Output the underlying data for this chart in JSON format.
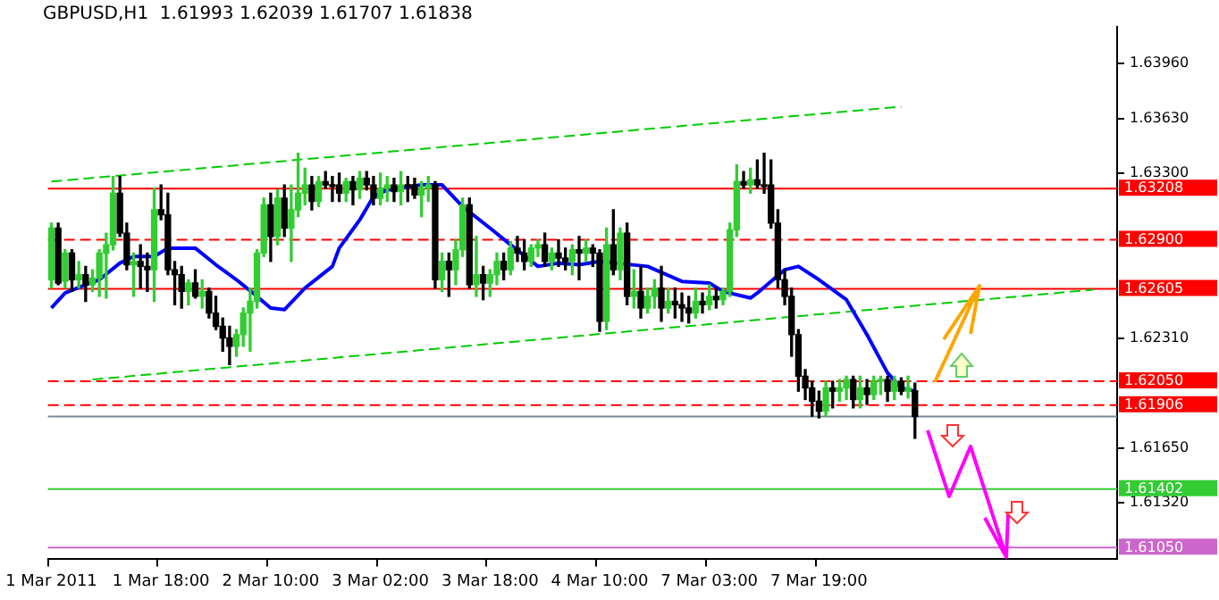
{
  "chart_data": {
    "type": "candlestick",
    "title": "GBPUSD,H1  1.61993 1.62039 1.61707 1.61838",
    "categories": [
      "1 Mar 2011",
      null,
      null,
      null,
      null,
      null,
      null,
      null,
      null,
      null,
      null,
      null,
      null,
      null,
      null,
      null,
      "1 Mar 18:00",
      null,
      null,
      null,
      null,
      null,
      null,
      null,
      null,
      null,
      null,
      null,
      null,
      null,
      null,
      null,
      "2 Mar 10:00",
      null,
      null,
      null,
      null,
      null,
      null,
      null,
      null,
      null,
      null,
      null,
      null,
      null,
      null,
      null,
      "3 Mar 02:00",
      null,
      null,
      null,
      null,
      null,
      null,
      null,
      null,
      null,
      null,
      null,
      null,
      null,
      null,
      null,
      "3 Mar 18:00",
      null,
      null,
      null,
      null,
      null,
      null,
      null,
      null,
      null,
      null,
      null,
      null,
      null,
      null,
      null,
      "4 Mar 10:00",
      null,
      null,
      null,
      null,
      null,
      null,
      null,
      null,
      null,
      null,
      null,
      null,
      null,
      null,
      null,
      "7 Mar 03:00",
      null,
      null,
      null,
      null,
      null,
      null,
      null,
      null,
      null,
      null,
      null,
      null,
      null,
      null,
      null,
      "7 Mar 19:00",
      null,
      null,
      null,
      null,
      null,
      null,
      null,
      null,
      null,
      null,
      null,
      null,
      null,
      null,
      null,
      null,
      null,
      null,
      null,
      null,
      null,
      null,
      null,
      null,
      null,
      null,
      null,
      null,
      null,
      null,
      null,
      null,
      null,
      null,
      null,
      null,
      null,
      null,
      null,
      null,
      null,
      null,
      null
    ],
    "ohlc": [
      [
        1.6266,
        1.63,
        1.6261,
        1.6297
      ],
      [
        1.6297,
        1.63,
        1.6263,
        1.6264
      ],
      [
        1.6265,
        1.6284,
        1.6261,
        1.6282
      ],
      [
        1.6282,
        1.6284,
        1.6259,
        1.6266
      ],
      [
        1.6266,
        1.6277,
        1.6261,
        1.6269
      ],
      [
        1.6269,
        1.6274,
        1.6253,
        1.6263
      ],
      [
        1.6263,
        1.6272,
        1.6259,
        1.6267
      ],
      [
        1.6267,
        1.6284,
        1.6256,
        1.6282
      ],
      [
        1.6282,
        1.6294,
        1.6255,
        1.6287
      ],
      [
        1.6287,
        1.6328,
        1.6284,
        1.6318
      ],
      [
        1.6318,
        1.6328,
        1.6292,
        1.6294
      ],
      [
        1.6294,
        1.63,
        1.6272,
        1.6275
      ],
      [
        1.6275,
        1.6282,
        1.6256,
        1.6277
      ],
      [
        1.6277,
        1.6287,
        1.6261,
        1.6274
      ],
      [
        1.6274,
        1.6282,
        1.6259,
        1.6272
      ],
      [
        1.6272,
        1.6321,
        1.6253,
        1.6308
      ],
      [
        1.6308,
        1.6323,
        1.6302,
        1.6305
      ],
      [
        1.6305,
        1.6318,
        1.6269,
        1.6272
      ],
      [
        1.6272,
        1.6277,
        1.6251,
        1.6269
      ],
      [
        1.6269,
        1.6274,
        1.6249,
        1.6259
      ],
      [
        1.6259,
        1.6266,
        1.6251,
        1.6264
      ],
      [
        1.6264,
        1.6272,
        1.6255,
        1.6256
      ],
      [
        1.6256,
        1.6266,
        1.6249,
        1.6259
      ],
      [
        1.6259,
        1.6261,
        1.6243,
        1.6246
      ],
      [
        1.6246,
        1.6256,
        1.6236,
        1.6238
      ],
      [
        1.6238,
        1.6243,
        1.6223,
        1.6231
      ],
      [
        1.6231,
        1.6238,
        1.6215,
        1.6226
      ],
      [
        1.6226,
        1.6236,
        1.622,
        1.6233
      ],
      [
        1.6233,
        1.6249,
        1.6226,
        1.6246
      ],
      [
        1.6246,
        1.6261,
        1.6223,
        1.6253
      ],
      [
        1.6253,
        1.6284,
        1.6249,
        1.6282
      ],
      [
        1.6282,
        1.6315,
        1.628,
        1.6311
      ],
      [
        1.6311,
        1.6318,
        1.6277,
        1.6292
      ],
      [
        1.6292,
        1.632,
        1.6287,
        1.6315
      ],
      [
        1.6315,
        1.6323,
        1.6292,
        1.6297
      ],
      [
        1.6297,
        1.6323,
        1.6277,
        1.6308
      ],
      [
        1.6308,
        1.6342,
        1.6304,
        1.6318
      ],
      [
        1.6318,
        1.6333,
        1.6311,
        1.6323
      ],
      [
        1.6323,
        1.6328,
        1.6308,
        1.6313
      ],
      [
        1.6313,
        1.6328,
        1.631,
        1.6325
      ],
      [
        1.6325,
        1.6331,
        1.6321,
        1.6323
      ],
      [
        1.6323,
        1.6328,
        1.6313,
        1.6322
      ],
      [
        1.6323,
        1.633,
        1.6313,
        1.6318
      ],
      [
        1.6318,
        1.6327,
        1.6313,
        1.6325
      ],
      [
        1.6325,
        1.6328,
        1.6311,
        1.632
      ],
      [
        1.632,
        1.6331,
        1.6315,
        1.6327
      ],
      [
        1.6327,
        1.6331,
        1.632,
        1.6323
      ],
      [
        1.6323,
        1.6328,
        1.6311,
        1.6315
      ],
      [
        1.6315,
        1.633,
        1.6311,
        1.6321
      ],
      [
        1.6321,
        1.6328,
        1.6313,
        1.6323
      ],
      [
        1.6323,
        1.6327,
        1.6313,
        1.6319
      ],
      [
        1.6319,
        1.6331,
        1.6311,
        1.6323
      ],
      [
        1.6323,
        1.6328,
        1.6313,
        1.6322
      ],
      [
        1.6323,
        1.6327,
        1.6315,
        1.6317
      ],
      [
        1.6317,
        1.6325,
        1.6304,
        1.6321
      ],
      [
        1.6321,
        1.6328,
        1.6313,
        1.6323
      ],
      [
        1.6323,
        1.6325,
        1.6261,
        1.6266
      ],
      [
        1.6266,
        1.6282,
        1.6259,
        1.6277
      ],
      [
        1.6277,
        1.6282,
        1.6256,
        1.6272
      ],
      [
        1.6272,
        1.629,
        1.6263,
        1.6284
      ],
      [
        1.6284,
        1.6315,
        1.628,
        1.6311
      ],
      [
        1.6311,
        1.6315,
        1.6261,
        1.6263
      ],
      [
        1.6263,
        1.6292,
        1.6256,
        1.6269
      ],
      [
        1.6269,
        1.6274,
        1.6254,
        1.6264
      ],
      [
        1.6264,
        1.6272,
        1.6256,
        1.6269
      ],
      [
        1.6269,
        1.6282,
        1.6263,
        1.6277
      ],
      [
        1.6277,
        1.6282,
        1.6266,
        1.6272
      ],
      [
        1.6272,
        1.6289,
        1.6269,
        1.6285
      ],
      [
        1.6285,
        1.6292,
        1.6277,
        1.6282
      ],
      [
        1.6282,
        1.629,
        1.6272,
        1.6277
      ],
      [
        1.6277,
        1.6287,
        1.6274,
        1.6285
      ],
      [
        1.6285,
        1.629,
        1.628,
        1.6287
      ],
      [
        1.6287,
        1.6294,
        1.6274,
        1.6277
      ],
      [
        1.6277,
        1.6285,
        1.6272,
        1.6282
      ],
      [
        1.6282,
        1.629,
        1.6274,
        1.6279
      ],
      [
        1.6279,
        1.6285,
        1.6272,
        1.6277
      ],
      [
        1.6277,
        1.6287,
        1.6269,
        1.6284
      ],
      [
        1.6284,
        1.6292,
        1.6266,
        1.6282
      ],
      [
        1.6282,
        1.629,
        1.6277,
        1.6285
      ],
      [
        1.6285,
        1.6287,
        1.6274,
        1.6282
      ],
      [
        1.6282,
        1.6284,
        1.6235,
        1.6241
      ],
      [
        1.6241,
        1.6297,
        1.6236,
        1.6287
      ],
      [
        1.6287,
        1.6308,
        1.6269,
        1.6272
      ],
      [
        1.6272,
        1.6297,
        1.6266,
        1.6294
      ],
      [
        1.6294,
        1.63,
        1.6251,
        1.6256
      ],
      [
        1.6256,
        1.6272,
        1.6249,
        1.6259
      ],
      [
        1.6259,
        1.6274,
        1.6243,
        1.6249
      ],
      [
        1.6249,
        1.6261,
        1.6246,
        1.6256
      ],
      [
        1.6256,
        1.6266,
        1.6249,
        1.6261
      ],
      [
        1.6261,
        1.6274,
        1.6241,
        1.6249
      ],
      [
        1.6249,
        1.6261,
        1.6246,
        1.6253
      ],
      [
        1.6253,
        1.6261,
        1.6243,
        1.6251
      ],
      [
        1.6251,
        1.6258,
        1.6241,
        1.6249
      ],
      [
        1.6249,
        1.6256,
        1.624,
        1.6246
      ],
      [
        1.6246,
        1.6261,
        1.6243,
        1.6253
      ],
      [
        1.6253,
        1.6258,
        1.6246,
        1.6251
      ],
      [
        1.6251,
        1.6263,
        1.6248,
        1.6256
      ],
      [
        1.6256,
        1.6261,
        1.6249,
        1.6254
      ],
      [
        1.6254,
        1.6261,
        1.6251,
        1.6259
      ],
      [
        1.6259,
        1.63,
        1.6256,
        1.6296
      ],
      [
        1.6296,
        1.6335,
        1.6292,
        1.6325
      ],
      [
        1.6325,
        1.6331,
        1.6321,
        1.6323
      ],
      [
        1.6323,
        1.6333,
        1.6318,
        1.6326
      ],
      [
        1.6326,
        1.6338,
        1.6321,
        1.6323
      ],
      [
        1.6323,
        1.6342,
        1.6318,
        1.6322
      ],
      [
        1.6323,
        1.6338,
        1.6297,
        1.63
      ],
      [
        1.63,
        1.6308,
        1.6261,
        1.6266
      ],
      [
        1.6266,
        1.6272,
        1.6251,
        1.6256
      ],
      [
        1.6256,
        1.6261,
        1.622,
        1.6233
      ],
      [
        1.6233,
        1.6236,
        1.6199,
        1.6208
      ],
      [
        1.6208,
        1.6212,
        1.6194,
        1.6201
      ],
      [
        1.6201,
        1.6205,
        1.6184,
        1.6193
      ],
      [
        1.6193,
        1.6199,
        1.6183,
        1.6187
      ],
      [
        1.6187,
        1.6205,
        1.6184,
        1.6201
      ],
      [
        1.6201,
        1.6205,
        1.6189,
        1.6199
      ],
      [
        1.6199,
        1.6206,
        1.6193,
        1.6201
      ],
      [
        1.6201,
        1.6208,
        1.6194,
        1.6206
      ],
      [
        1.6206,
        1.6208,
        1.6189,
        1.6194
      ],
      [
        1.6194,
        1.6208,
        1.6189,
        1.6201
      ],
      [
        1.6201,
        1.6206,
        1.6191,
        1.6197
      ],
      [
        1.6197,
        1.6208,
        1.6194,
        1.6205
      ],
      [
        1.6205,
        1.6208,
        1.6197,
        1.6206
      ],
      [
        1.6206,
        1.6208,
        1.6193,
        1.6199
      ],
      [
        1.6199,
        1.6208,
        1.6194,
        1.6205
      ],
      [
        1.6205,
        1.6207,
        1.6197,
        1.6199
      ],
      [
        1.6199,
        1.6208,
        1.6195,
        1.6201
      ],
      [
        1.61993,
        1.62039,
        1.61707,
        1.61838
      ],
      null,
      null,
      null,
      null,
      null,
      null,
      null,
      null,
      null,
      null,
      null,
      null,
      null,
      null,
      null,
      null,
      null,
      null,
      null,
      null,
      null,
      null,
      null,
      null,
      null,
      null,
      null,
      null,
      null
    ],
    "series": [
      {
        "type": "line",
        "color": "#0000ff",
        "values": [
          1.6249,
          null,
          1.6258,
          null,
          null,
          1.6263,
          null,
          1.6266,
          null,
          null,
          1.6276,
          null,
          1.628,
          null,
          null,
          1.628,
          null,
          1.6285,
          null,
          null,
          null,
          1.6285,
          null,
          null,
          1.6275,
          null,
          null,
          1.6266,
          null,
          null,
          1.6256,
          null,
          1.6249,
          null,
          1.6248,
          null,
          null,
          1.6261,
          null,
          null,
          null,
          1.6274,
          1.6285,
          null,
          null,
          1.6302,
          null,
          1.6316,
          null,
          1.632,
          null,
          null,
          null,
          null,
          1.6323,
          null,
          null,
          1.6323,
          null,
          null,
          1.631,
          null,
          null,
          null,
          1.6297,
          null,
          null,
          1.6287,
          null,
          null,
          null,
          1.6274,
          null,
          null,
          1.6276,
          null,
          null,
          1.6275,
          null,
          null,
          1.6277,
          null,
          null,
          null,
          null,
          null,
          null,
          1.6274,
          null,
          null,
          null,
          null,
          1.6265,
          null,
          null,
          null,
          1.6264,
          null,
          1.6259,
          null,
          null,
          null,
          1.6255,
          1.6258,
          null,
          null,
          null,
          1.6272,
          null,
          1.6274,
          null,
          null,
          1.6266,
          null,
          null,
          null,
          1.6254,
          null,
          null,
          1.6233,
          null,
          null,
          1.621,
          null,
          1.6201,
          null,
          1.6199,
          null,
          null,
          null,
          null,
          null,
          null,
          null,
          null,
          null,
          null,
          null,
          null,
          null,
          null,
          null,
          null,
          null,
          null,
          null,
          null,
          null,
          null,
          null,
          null,
          null,
          null,
          null,
          null,
          null
        ]
      },
      {
        "type": "line",
        "color": "#00cc00",
        "line_style": "dashed",
        "values": [
          1.6325,
          null,
          null,
          null,
          null,
          null,
          null,
          null,
          null,
          null,
          null,
          null,
          null,
          null,
          null,
          null,
          null,
          null,
          null,
          null,
          null,
          null,
          null,
          null,
          null,
          null,
          null,
          null,
          null,
          null,
          null,
          null,
          null,
          null,
          null,
          null,
          null,
          null,
          null,
          null,
          null,
          null,
          null,
          null,
          null,
          null,
          null,
          null,
          null,
          null,
          null,
          null,
          null,
          null,
          null,
          null,
          null,
          null,
          null,
          null,
          null,
          null,
          null,
          null,
          null,
          null,
          null,
          null,
          null,
          null,
          null,
          null,
          null,
          null,
          null,
          null,
          null,
          null,
          null,
          null,
          null,
          null,
          null,
          null,
          null,
          null,
          null,
          null,
          null,
          null,
          null,
          null,
          null,
          null,
          null,
          null,
          null,
          null,
          null,
          null,
          null,
          null,
          null,
          null,
          null,
          null,
          null,
          null,
          null,
          null,
          null,
          null,
          null,
          null,
          null,
          null,
          null,
          null,
          null,
          null,
          null,
          null,
          null,
          null,
          1.637,
          null,
          null,
          null,
          null,
          null,
          null,
          null,
          null,
          null,
          null,
          null,
          null,
          null,
          null,
          null,
          null,
          null,
          null,
          null,
          null,
          null,
          null,
          null,
          null,
          null,
          null,
          null,
          null,
          null,
          null,
          null
        ]
      },
      {
        "type": "line",
        "color": "#00cc00",
        "line_style": "dashed",
        "values": [
          null,
          null,
          null,
          null,
          null,
          null,
          1.6206,
          null,
          null,
          null,
          null,
          null,
          null,
          null,
          null,
          null,
          null,
          null,
          null,
          null,
          null,
          null,
          null,
          null,
          null,
          null,
          null,
          null,
          null,
          null,
          null,
          null,
          null,
          null,
          null,
          null,
          null,
          null,
          null,
          null,
          null,
          null,
          null,
          null,
          null,
          null,
          null,
          null,
          null,
          null,
          null,
          null,
          null,
          null,
          null,
          null,
          null,
          null,
          null,
          null,
          null,
          null,
          null,
          null,
          null,
          null,
          null,
          null,
          null,
          null,
          null,
          null,
          null,
          null,
          null,
          null,
          null,
          null,
          null,
          null,
          null,
          null,
          null,
          null,
          null,
          null,
          null,
          null,
          null,
          null,
          null,
          null,
          null,
          null,
          null,
          null,
          null,
          null,
          null,
          null,
          null,
          null,
          null,
          null,
          null,
          null,
          null,
          null,
          null,
          null,
          null,
          null,
          null,
          null,
          null,
          null,
          null,
          null,
          null,
          null,
          null,
          null,
          null,
          null,
          null,
          null,
          null,
          null,
          null,
          null,
          null,
          null,
          null,
          null,
          null,
          null,
          null,
          null,
          null,
          null,
          null,
          null,
          null,
          null,
          null,
          null,
          null,
          null,
          null,
          null,
          null,
          null,
          1.626,
          null,
          null,
          null
        ]
      }
    ],
    "ylim": [
      1.6098,
      1.6418
    ],
    "yticks": [
      {
        "value": 1.6396,
        "label": "1.63960"
      },
      {
        "value": 1.6363,
        "label": "1.63630"
      },
      {
        "value": 1.633,
        "label": "1.63300"
      },
      {
        "value": 1.6231,
        "label": "1.62310"
      },
      {
        "value": 1.6165,
        "label": "1.61650"
      },
      {
        "value": 1.6132,
        "label": "1.61320"
      }
    ],
    "ref_lines": [
      {
        "axis": "y",
        "value": 1.61838,
        "color": "#778899",
        "line_style": "solid"
      },
      {
        "axis": "y",
        "value": 1.63208,
        "label": "1.63208",
        "color": "#ff0000",
        "line_style": "solid"
      },
      {
        "axis": "y",
        "value": 1.629,
        "label": "1.62900",
        "color": "#ff0000",
        "line_style": "dashed"
      },
      {
        "axis": "y",
        "value": 1.62605,
        "label": "1.62605",
        "color": "#ff0000",
        "line_style": "solid"
      },
      {
        "axis": "y",
        "value": 1.6205,
        "label": "1.62050",
        "color": "#ff0000",
        "line_style": "dashed"
      },
      {
        "axis": "y",
        "value": 1.61906,
        "label": "1.61906",
        "color": "#ff0000",
        "line_style": "dashed"
      },
      {
        "axis": "y",
        "value": 1.61402,
        "label": "1.61402",
        "color": "#33cc33",
        "line_style": "solid"
      },
      {
        "axis": "y",
        "value": 1.6105,
        "label": "1.61050",
        "color": "#cc66cc",
        "line_style": "solid"
      }
    ],
    "grid": false,
    "legend": false
  }
}
